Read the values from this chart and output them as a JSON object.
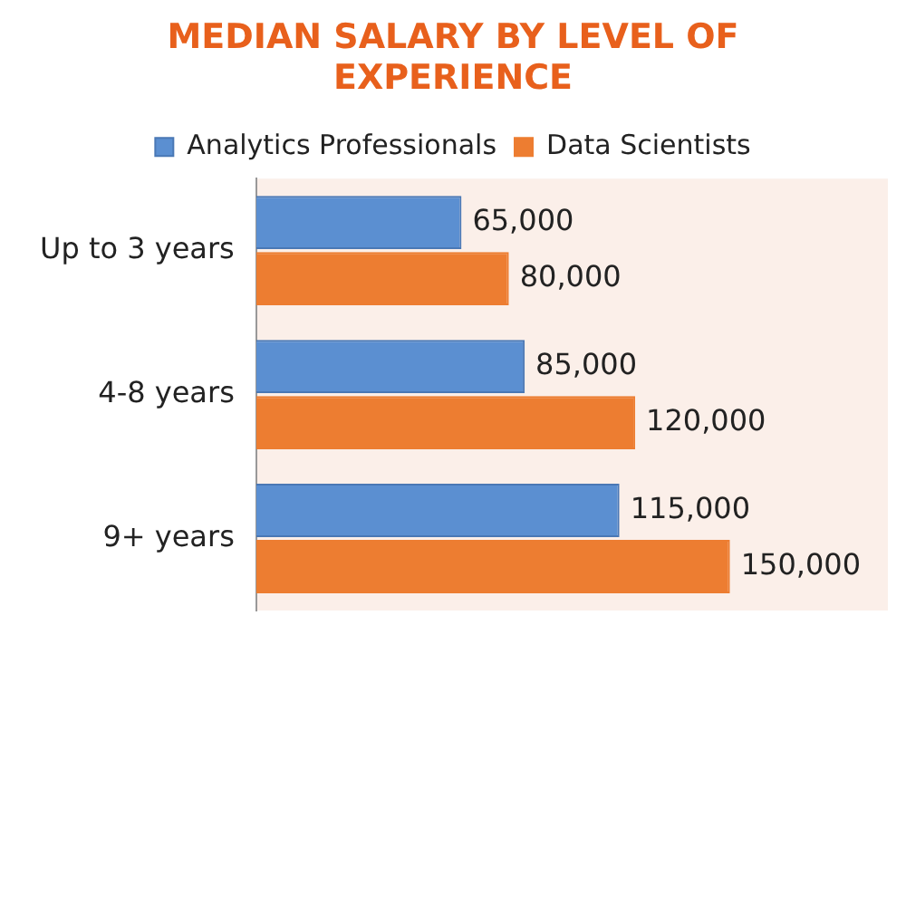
{
  "chart_data": {
    "type": "bar",
    "orientation": "horizontal",
    "title": "MEDIAN SALARY BY LEVEL OF EXPERIENCE",
    "categories": [
      "Up to 3 years",
      "4-8 years",
      "9+ years"
    ],
    "series": [
      {
        "name": "Analytics Professionals",
        "color": "#5b8fd1",
        "values": [
          65000,
          85000,
          115000
        ],
        "value_labels": [
          "65,000",
          "85,000",
          "115,000"
        ]
      },
      {
        "name": "Data Scientists",
        "color": "#ed7d31",
        "values": [
          80000,
          120000,
          150000
        ],
        "value_labels": [
          "80,000",
          "120,000",
          "150,000"
        ]
      }
    ],
    "xlim": [
      0,
      200000
    ],
    "tick_labels": "y",
    "grid": false,
    "legend": "top"
  }
}
